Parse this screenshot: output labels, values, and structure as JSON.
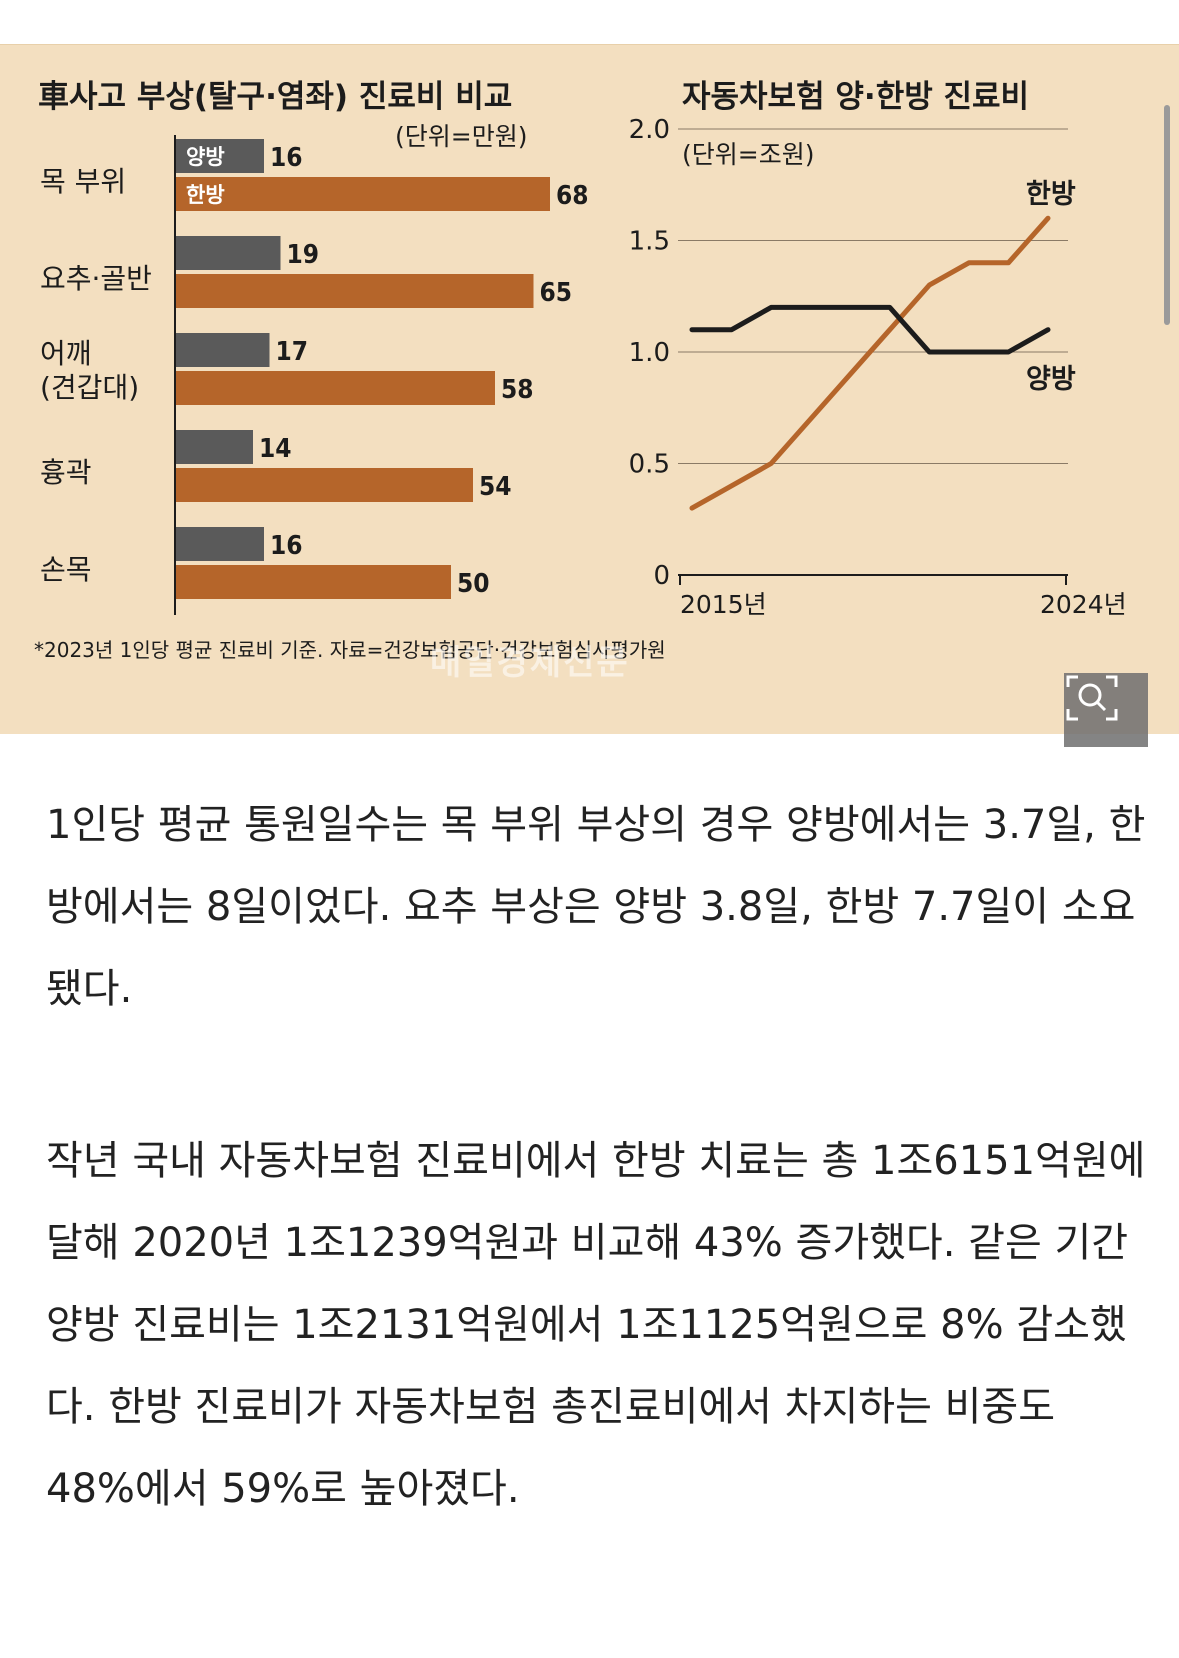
{
  "bar_chart": {
    "title": "車사고 부상(탈구·염좌) 진료비 비교",
    "unit": "(단위=만원)",
    "legend_western": "양방",
    "legend_korean": "한방",
    "color_western": "#5a5a5a",
    "color_korean": "#b5652a"
  },
  "line_chart": {
    "title": "자동차보험 양·한방 진료비",
    "unit": "(단위=조원)",
    "series_label_korean": "한방",
    "series_label_western": "양방",
    "x_start_label": "2015년",
    "x_end_label": "2024년",
    "y_ticks": [
      "0",
      "0.5",
      "1.0",
      "1.5",
      "2.0"
    ]
  },
  "chart_data": [
    {
      "type": "bar",
      "title": "車사고 부상(탈구·염좌) 진료비 비교",
      "unit": "(단위=만원)",
      "categories": [
        "목 부위",
        "요추·골반",
        "어깨 (견갑대)",
        "흉곽",
        "손목"
      ],
      "series": [
        {
          "name": "양방",
          "values": [
            16,
            19,
            17,
            14,
            16
          ]
        },
        {
          "name": "한방",
          "values": [
            68,
            65,
            58,
            54,
            50
          ]
        }
      ],
      "orientation": "horizontal"
    },
    {
      "type": "line",
      "title": "자동차보험 양·한방 진료비",
      "unit": "(단위=조원)",
      "x": [
        2015,
        2016,
        2017,
        2018,
        2019,
        2020,
        2021,
        2022,
        2023,
        2024
      ],
      "series": [
        {
          "name": "한방",
          "values": [
            0.3,
            0.4,
            0.5,
            0.7,
            0.9,
            1.1,
            1.3,
            1.4,
            1.4,
            1.6
          ]
        },
        {
          "name": "양방",
          "values": [
            1.1,
            1.1,
            1.2,
            1.2,
            1.2,
            1.2,
            1.0,
            1.0,
            1.0,
            1.1
          ]
        }
      ],
      "ylim": [
        0,
        2.0
      ],
      "grid": true
    }
  ],
  "footnote": "*2023년 1인당 평균 진료비 기준. 자료=건강보험공단·건강보험심사평가원",
  "watermark": "매일경제신문",
  "zoom_icon": "magnifier-expand-icon",
  "article": {
    "paragraph1": "1인당 평균 통원일수는 목 부위 부상의 경우 양방에서는 3.7일, 한방에서는 8일이었다. 요추 부상은 양방 3.8일, 한방 7.7일이 소요됐다.",
    "paragraph2": "작년 국내 자동차보험 진료비에서 한방 치료는 총 1조6151억원에 달해 2020년 1조1239억원과 비교해 43% 증가했다. 같은 기간 양방 진료비는 1조2131억원에서 1조1125억원으로 8% 감소했다. 한방 진료비가 자동차보험 총진료비에서 차지하는 비중도 48%에서 59%로 높아졌다."
  }
}
